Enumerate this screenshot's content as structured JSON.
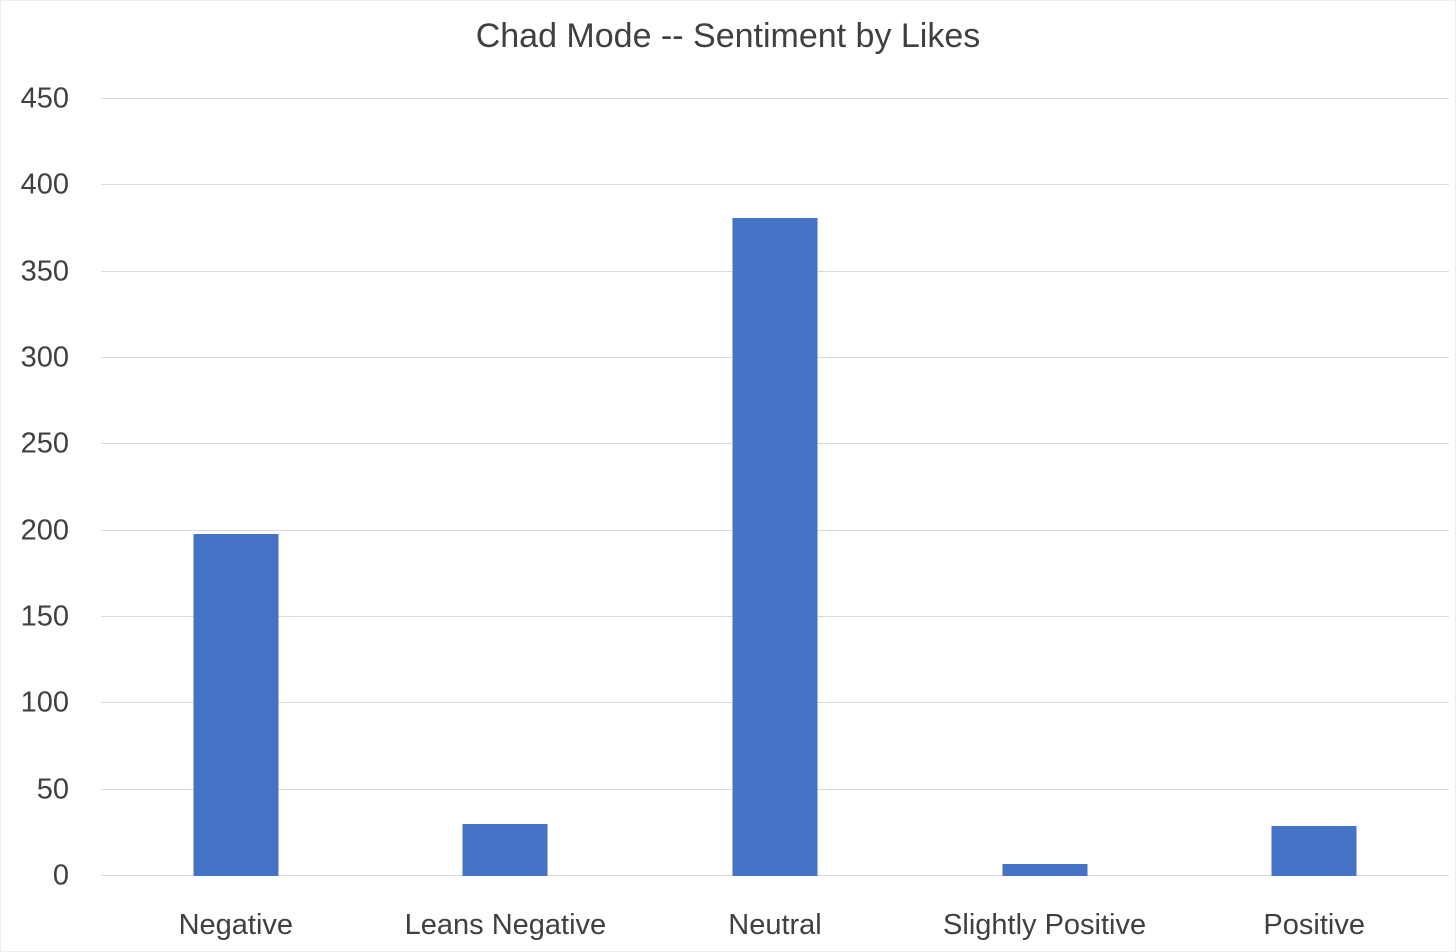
{
  "chart_data": {
    "type": "bar",
    "title": "Chad Mode -- Sentiment by Likes",
    "categories": [
      "Negative",
      "Leans Negative",
      "Neutral",
      "Slightly Positive",
      "Positive"
    ],
    "values": [
      198,
      30,
      381,
      7,
      29
    ],
    "xlabel": "",
    "ylabel": "",
    "ylim": [
      0,
      450
    ],
    "yticks": [
      0,
      50,
      100,
      150,
      200,
      250,
      300,
      350,
      400,
      450
    ],
    "grid": true,
    "legend_position": "none",
    "bar_color": "#4472C4",
    "gridline_color": "#D9D9D9",
    "text_color": "#404040",
    "background_color": "#FFFFFF"
  }
}
